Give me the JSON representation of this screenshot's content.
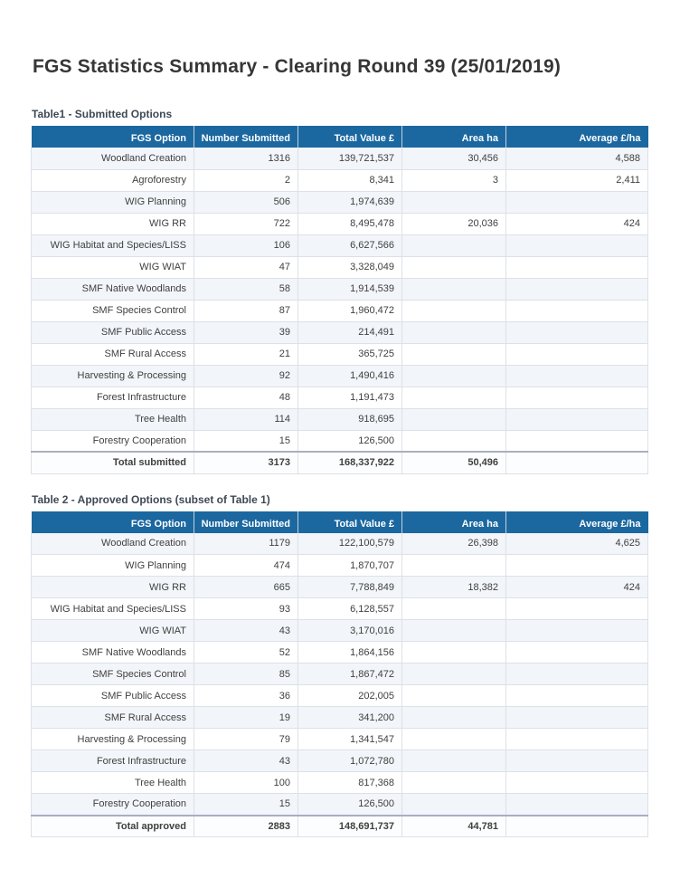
{
  "page": {
    "title": "FGS Statistics Summary - Clearing Round 39 (25/01/2019)"
  },
  "columns": [
    "FGS Option",
    "Number Submitted",
    "Total Value £",
    "Area ha",
    "Average £/ha"
  ],
  "table1": {
    "caption": "Table1 - Submitted Options",
    "rows": [
      [
        "Woodland Creation",
        "1316",
        "139,721,537",
        "30,456",
        "4,588"
      ],
      [
        "Agroforestry",
        "2",
        "8,341",
        "3",
        "2,411"
      ],
      [
        "WIG Planning",
        "506",
        "1,974,639",
        "",
        ""
      ],
      [
        "WIG RR",
        "722",
        "8,495,478",
        "20,036",
        "424"
      ],
      [
        "WIG Habitat and Species/LISS",
        "106",
        "6,627,566",
        "",
        ""
      ],
      [
        "WIG WIAT",
        "47",
        "3,328,049",
        "",
        ""
      ],
      [
        "SMF Native Woodlands",
        "58",
        "1,914,539",
        "",
        ""
      ],
      [
        "SMF Species Control",
        "87",
        "1,960,472",
        "",
        ""
      ],
      [
        "SMF Public Access",
        "39",
        "214,491",
        "",
        ""
      ],
      [
        "SMF Rural Access",
        "21",
        "365,725",
        "",
        ""
      ],
      [
        "Harvesting & Processing",
        "92",
        "1,490,416",
        "",
        ""
      ],
      [
        "Forest Infrastructure",
        "48",
        "1,191,473",
        "",
        ""
      ],
      [
        "Tree Health",
        "114",
        "918,695",
        "",
        ""
      ],
      [
        "Forestry Cooperation",
        "15",
        "126,500",
        "",
        ""
      ]
    ],
    "total": [
      "Total submitted",
      "3173",
      "168,337,922",
      "50,496",
      ""
    ]
  },
  "table2": {
    "caption": "Table 2 - Approved Options (subset of Table 1)",
    "rows": [
      [
        "Woodland Creation",
        "1179",
        "122,100,579",
        "26,398",
        "4,625"
      ],
      [
        "WIG Planning",
        "474",
        "1,870,707",
        "",
        ""
      ],
      [
        "WIG RR",
        "665",
        "7,788,849",
        "18,382",
        "424"
      ],
      [
        "WIG Habitat and Species/LISS",
        "93",
        "6,128,557",
        "",
        ""
      ],
      [
        "WIG WIAT",
        "43",
        "3,170,016",
        "",
        ""
      ],
      [
        "SMF Native Woodlands",
        "52",
        "1,864,156",
        "",
        ""
      ],
      [
        "SMF Species Control",
        "85",
        "1,867,472",
        "",
        ""
      ],
      [
        "SMF Public Access",
        "36",
        "202,005",
        "",
        ""
      ],
      [
        "SMF Rural Access",
        "19",
        "341,200",
        "",
        ""
      ],
      [
        "Harvesting & Processing",
        "79",
        "1,341,547",
        "",
        ""
      ],
      [
        "Forest Infrastructure",
        "43",
        "1,072,780",
        "",
        ""
      ],
      [
        "Tree Health",
        "100",
        "817,368",
        "",
        ""
      ],
      [
        "Forestry Cooperation",
        "15",
        "126,500",
        "",
        ""
      ]
    ],
    "total": [
      "Total approved",
      "2883",
      "148,691,737",
      "44,781",
      ""
    ]
  },
  "colors": {
    "header_bg": "#1B67A0",
    "header_text": "#FFFFFF",
    "alt_row_bg": "#F2F5F9",
    "grid_line": "#DCE1E7",
    "total_row_border": "#A9AEC2",
    "title_text": "#363636"
  }
}
